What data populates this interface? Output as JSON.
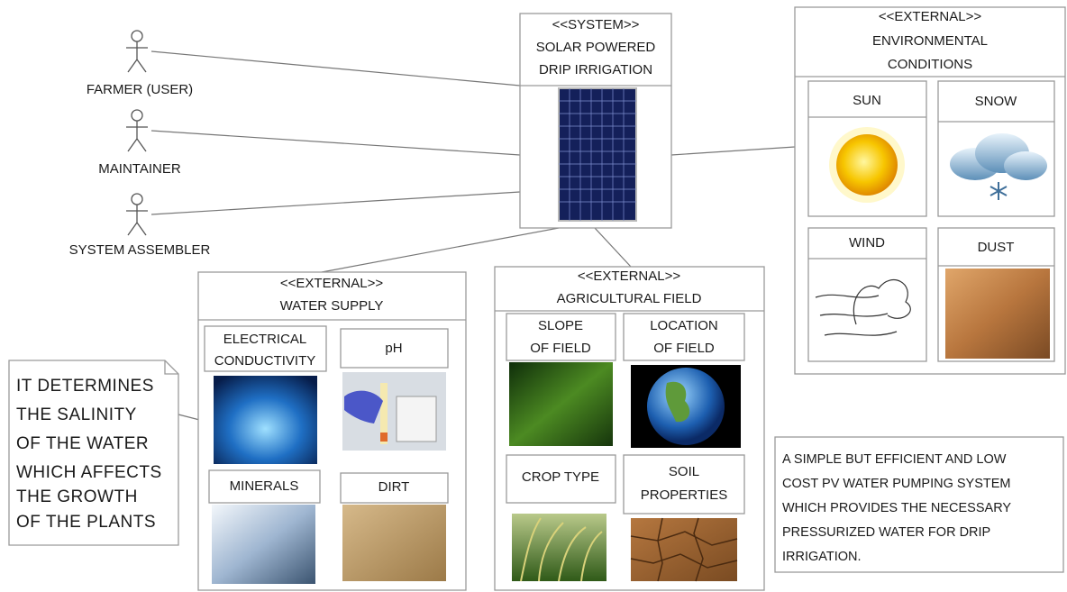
{
  "actors": [
    {
      "label": "FARMER (USER)"
    },
    {
      "label": "MAINTAINER"
    },
    {
      "label": "SYSTEM ASSEMBLER"
    }
  ],
  "system": {
    "stereotype": "<<SYSTEM>>",
    "title_lines": [
      "SOLAR POWERED",
      "DRIP IRRIGATION"
    ]
  },
  "environment": {
    "stereotype": "<<EXTERNAL>>",
    "title_lines": [
      "ENVIRONMENTAL",
      "CONDITIONS"
    ],
    "items": [
      {
        "label_lines": [
          "SUN"
        ]
      },
      {
        "label_lines": [
          "SNOW"
        ]
      },
      {
        "label_lines": [
          "WIND"
        ]
      },
      {
        "label_lines": [
          "DUST"
        ]
      }
    ]
  },
  "water_supply": {
    "stereotype": "<<EXTERNAL>>",
    "title_lines": [
      "WATER SUPPLY"
    ],
    "items": [
      {
        "label_lines": [
          "ELECTRICAL",
          "CONDUCTIVITY"
        ]
      },
      {
        "label_lines": [
          "pH"
        ]
      },
      {
        "label_lines": [
          "MINERALS"
        ]
      },
      {
        "label_lines": [
          "DIRT"
        ]
      }
    ]
  },
  "agricultural_field": {
    "stereotype": "<<EXTERNAL>>",
    "title_lines": [
      "AGRICULTURAL FIELD"
    ],
    "items": [
      {
        "label_lines": [
          "SLOPE",
          "OF FIELD"
        ]
      },
      {
        "label_lines": [
          "LOCATION",
          "OF FIELD"
        ]
      },
      {
        "label_lines": [
          "CROP TYPE"
        ]
      },
      {
        "label_lines": [
          "SOIL",
          "PROPERTIES"
        ]
      }
    ]
  },
  "notes": [
    {
      "lines": [
        "IT DETERMINES",
        "THE SALINITY",
        "OF THE WATER",
        "WHICH AFFECTS",
        "THE GROWTH",
        "OF THE PLANTS"
      ]
    },
    {
      "lines": [
        "A SIMPLE BUT EFFICIENT AND LOW",
        "COST PV WATER PUMPING SYSTEM",
        "WHICH PROVIDES THE NECESSARY",
        "PRESSURIZED WATER FOR DRIP",
        "IRRIGATION."
      ]
    }
  ]
}
